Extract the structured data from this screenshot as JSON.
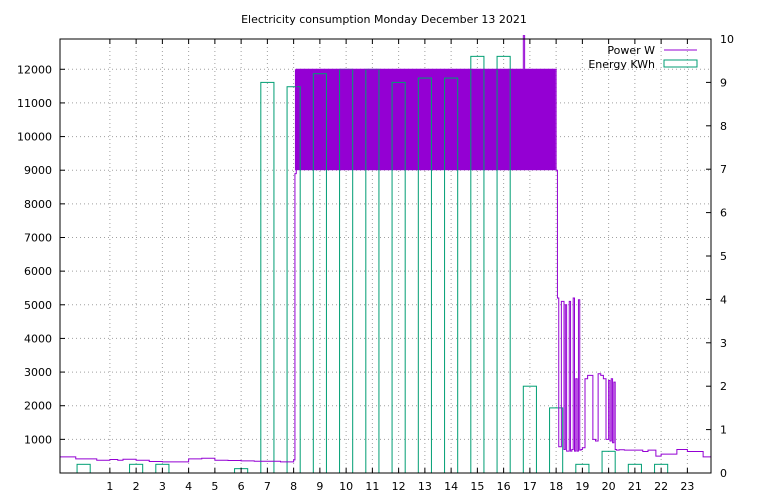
{
  "chart_data": {
    "type": "bar",
    "title": "Electricity consumption Monday December 13 2021",
    "xlabel": "",
    "ylabel": "",
    "grid": true,
    "legend_position": "top-right",
    "x_range": [
      -0.9,
      23.9
    ],
    "x_ticks": [
      1,
      2,
      3,
      4,
      5,
      6,
      7,
      8,
      9,
      10,
      11,
      12,
      13,
      14,
      15,
      16,
      17,
      18,
      19,
      20,
      21,
      22,
      23
    ],
    "y_left_range": [
      0,
      12900
    ],
    "y_left_ticks": [
      1000,
      2000,
      3000,
      4000,
      5000,
      6000,
      7000,
      8000,
      9000,
      10000,
      11000,
      12000
    ],
    "y_right_range": [
      0,
      10
    ],
    "y_right_ticks": [
      0,
      1,
      2,
      3,
      4,
      5,
      6,
      7,
      8,
      9,
      10
    ],
    "colors": {
      "power": "#9400d3",
      "energy": "#009e73"
    },
    "series": [
      {
        "name": "Power W",
        "axis": "left",
        "kind": "step-line",
        "x": [
          -0.9,
          -0.5,
          -0.3,
          0.0,
          0.5,
          1.0,
          1.3,
          1.5,
          2.0,
          2.5,
          3.0,
          3.5,
          4.0,
          4.5,
          5.0,
          5.5,
          6.0,
          6.5,
          7.0,
          7.5,
          8.0,
          8.05,
          8.1,
          9,
          10,
          11,
          12,
          13,
          14,
          15,
          16,
          16.7,
          16.75,
          16.8,
          17.5,
          17.9,
          18.0,
          18.05,
          18.1,
          18.2,
          18.3,
          18.35,
          18.4,
          18.5,
          18.55,
          18.6,
          18.65,
          18.7,
          18.75,
          18.8,
          18.85,
          18.9,
          18.95,
          19.0,
          19.1,
          19.2,
          19.3,
          19.4,
          19.5,
          19.6,
          19.7,
          19.8,
          19.9,
          20.0,
          20.05,
          20.1,
          20.15,
          20.2,
          20.25,
          20.3,
          20.4,
          20.6,
          21.0,
          21.3,
          21.5,
          21.8,
          22.0,
          22.4,
          22.6,
          23.0,
          23.3,
          23.6,
          23.9
        ],
        "values": [
          480,
          480,
          420,
          420,
          380,
          400,
          380,
          410,
          380,
          340,
          330,
          330,
          420,
          440,
          380,
          370,
          360,
          350,
          350,
          330,
          390,
          8900,
          12000,
          12000,
          12000,
          12000,
          12000,
          12000,
          12000,
          12000,
          12000,
          12000,
          13000,
          12000,
          12000,
          12000,
          9000,
          5200,
          780,
          5100,
          700,
          5000,
          650,
          5100,
          650,
          700,
          5200,
          650,
          2800,
          650,
          5150,
          680,
          700,
          750,
          2800,
          2900,
          2900,
          1000,
          950,
          2950,
          2900,
          2800,
          1000,
          2750,
          950,
          2800,
          900,
          2700,
          700,
          680,
          690,
          680,
          680,
          640,
          680,
          500,
          560,
          560,
          700,
          640,
          640,
          480,
          500
        ]
      },
      {
        "name": "Energy KWh",
        "axis": "right",
        "kind": "bars",
        "x": [
          0,
          1,
          2,
          3,
          4,
          5,
          6,
          7,
          8,
          9,
          10,
          11,
          12,
          13,
          14,
          15,
          16,
          17,
          18,
          19,
          20,
          21,
          22,
          23
        ],
        "values": [
          0.2,
          0,
          0.2,
          0.2,
          0,
          0,
          0.1,
          9.0,
          8.9,
          9.2,
          9.3,
          9.3,
          9.0,
          9.1,
          9.1,
          9.6,
          9.6,
          2.0,
          1.5,
          0.2,
          0.5,
          0.2,
          0.2,
          0
        ]
      }
    ]
  }
}
